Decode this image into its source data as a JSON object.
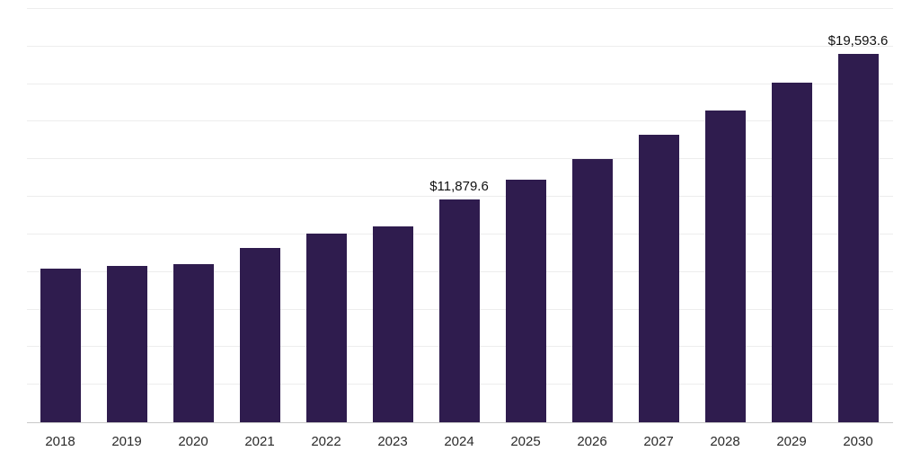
{
  "chart_data": {
    "type": "bar",
    "title": "",
    "xlabel": "",
    "ylabel": "",
    "categories": [
      "2018",
      "2019",
      "2020",
      "2021",
      "2022",
      "2023",
      "2024",
      "2025",
      "2026",
      "2027",
      "2028",
      "2029",
      "2030"
    ],
    "values": [
      8200,
      8330,
      8420,
      9280,
      10050,
      10430,
      11879.6,
      12920,
      14020,
      15310,
      16600,
      18090,
      19593.6
    ],
    "data_labels": {
      "2024": "$11,879.6",
      "2030": "$19,593.6"
    },
    "ylim": [
      0,
      22000
    ],
    "gridline_step": 2000,
    "grid": "horizontal",
    "legend_position": "none",
    "bar_color": "#2f1c4e",
    "gridline_color": "#ededed",
    "axis_line_color": "#c9c9c9"
  }
}
